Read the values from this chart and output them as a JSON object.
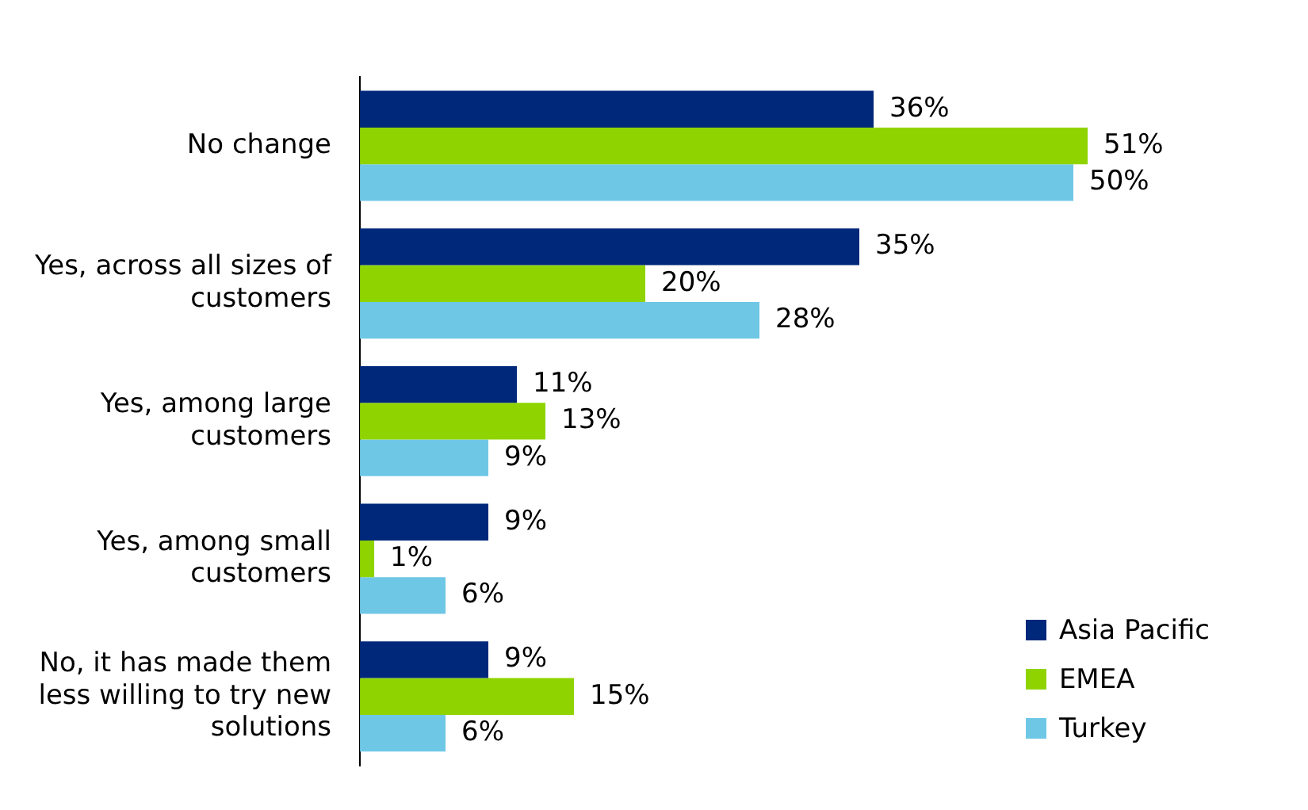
{
  "chart_data": {
    "type": "bar",
    "orientation": "horizontal",
    "categories": [
      "No change",
      "Yes, across all sizes of customers",
      "Yes, among large customers",
      "Yes, among small customers",
      "No, it has made them less willing to try new solutions"
    ],
    "series": [
      {
        "name": "Asia Pacific",
        "color": "#00287a",
        "values": [
          36,
          35,
          11,
          9,
          9
        ],
        "value_labels": [
          "36%",
          "35%",
          "11%",
          "9%",
          "9%"
        ]
      },
      {
        "name": "EMEA",
        "color": "#8fd400",
        "values": [
          51,
          20,
          13,
          1,
          15
        ],
        "value_labels": [
          "51%",
          "20%",
          "13%",
          "1%",
          "15%"
        ]
      },
      {
        "name": "Turkey",
        "color": "#6fc7e6",
        "values": [
          50,
          28,
          9,
          6,
          6
        ],
        "value_labels": [
          "50%",
          "28%",
          "9%",
          "6%",
          "6%"
        ]
      }
    ],
    "legend": "bottom right",
    "tick_labels": "y"
  }
}
